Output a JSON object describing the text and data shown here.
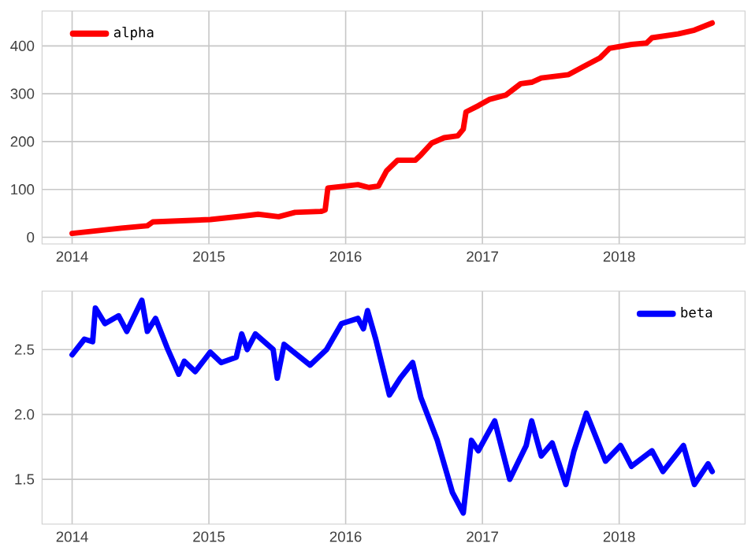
{
  "chart_data": [
    {
      "type": "line",
      "x": [
        2014.0,
        2014.36,
        2014.55,
        2014.59,
        2015.01,
        2015.24,
        2015.36,
        2015.51,
        2015.63,
        2015.82,
        2015.85,
        2015.87,
        2016.09,
        2016.17,
        2016.24,
        2016.3,
        2016.38,
        2016.51,
        2016.55,
        2016.63,
        2016.72,
        2016.82,
        2016.86,
        2016.88,
        2016.97,
        2017.05,
        2017.17,
        2017.28,
        2017.36,
        2017.43,
        2017.63,
        2017.74,
        2017.86,
        2017.93,
        2018.09,
        2018.2,
        2018.24,
        2018.43,
        2018.55,
        2018.68
      ],
      "series": [
        {
          "name": "alpha",
          "color": "#ff0000",
          "values": [
            8,
            19,
            24,
            32,
            37,
            44,
            48,
            43,
            52,
            54,
            57,
            103,
            110,
            104,
            107,
            139,
            161,
            161,
            172,
            197,
            208,
            212,
            226,
            262,
            275,
            288,
            297,
            321,
            324,
            333,
            340,
            357,
            375,
            395,
            403,
            406,
            417,
            425,
            433,
            448
          ]
        }
      ],
      "xlim": [
        2013.78,
        2018.92
      ],
      "ylim": [
        -14,
        473
      ],
      "xticks": [
        2014,
        2015,
        2016,
        2017,
        2018
      ],
      "yticks": [
        0,
        100,
        200,
        300,
        400
      ],
      "grid": true,
      "legend": "top left"
    },
    {
      "type": "line",
      "x": [
        2014.0,
        2014.09,
        2014.15,
        2014.17,
        2014.24,
        2014.34,
        2014.4,
        2014.51,
        2014.55,
        2014.61,
        2014.7,
        2014.78,
        2014.82,
        2014.9,
        2015.01,
        2015.09,
        2015.2,
        2015.24,
        2015.28,
        2015.34,
        2015.47,
        2015.5,
        2015.55,
        2015.74,
        2015.86,
        2015.97,
        2016.09,
        2016.13,
        2016.16,
        2016.22,
        2016.32,
        2016.4,
        2016.49,
        2016.55,
        2016.67,
        2016.78,
        2016.86,
        2016.92,
        2016.97,
        2017.09,
        2017.2,
        2017.32,
        2017.36,
        2017.43,
        2017.51,
        2017.61,
        2017.67,
        2017.76,
        2017.9,
        2018.01,
        2018.09,
        2018.24,
        2018.32,
        2018.47,
        2018.55,
        2018.65,
        2018.68
      ],
      "series": [
        {
          "name": "beta",
          "color": "#0000ff",
          "values": [
            2.46,
            2.58,
            2.56,
            2.82,
            2.7,
            2.76,
            2.64,
            2.88,
            2.64,
            2.74,
            2.5,
            2.31,
            2.41,
            2.33,
            2.48,
            2.4,
            2.44,
            2.62,
            2.5,
            2.62,
            2.5,
            2.28,
            2.54,
            2.38,
            2.5,
            2.7,
            2.74,
            2.66,
            2.8,
            2.58,
            2.15,
            2.28,
            2.4,
            2.13,
            1.8,
            1.4,
            1.24,
            1.8,
            1.72,
            1.95,
            1.5,
            1.76,
            1.95,
            1.68,
            1.78,
            1.46,
            1.72,
            2.01,
            1.64,
            1.76,
            1.6,
            1.72,
            1.56,
            1.76,
            1.46,
            1.62,
            1.56
          ]
        }
      ],
      "xlim": [
        2013.78,
        2018.92
      ],
      "ylim": [
        1.155,
        2.95
      ],
      "xticks": [
        2014,
        2015,
        2016,
        2017,
        2018
      ],
      "yticks": [
        1.5,
        {
          "value": 2,
          "label": "2.0"
        },
        2.5
      ],
      "grid": true,
      "legend": "top right"
    }
  ]
}
